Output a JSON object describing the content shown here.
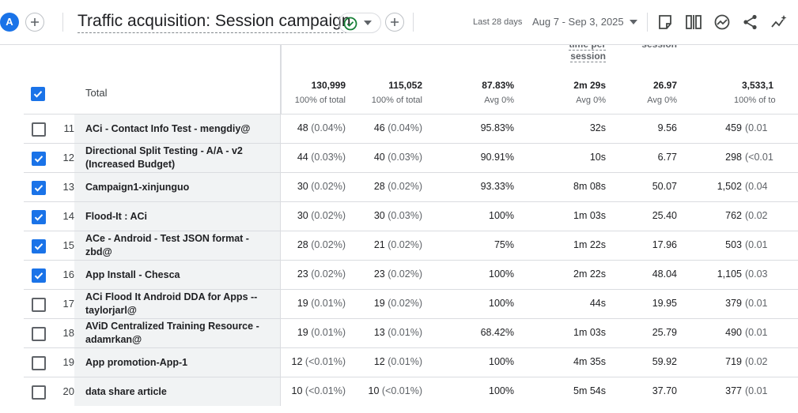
{
  "header": {
    "avatar_letter": "A",
    "report_title": "Traffic acquisition: Session campaign",
    "date_label": "Last 28 days",
    "date_range": "Aug 7 - Sep 3, 2025",
    "icons": [
      "add-icon",
      "check-circle-icon",
      "chevron-down-icon",
      "add-icon",
      "edit-icon",
      "compare-icon",
      "insights-icon",
      "share-icon",
      "sparkle-icon"
    ]
  },
  "table": {
    "partial_headers": [
      "time per session",
      "session"
    ],
    "total": {
      "label": "Total",
      "checked": true,
      "values": [
        {
          "main": "130,999",
          "sub": "100% of total"
        },
        {
          "main": "115,052",
          "sub": "100% of total"
        },
        {
          "main": "87.83%",
          "sub": "Avg 0%"
        },
        {
          "main": "2m 29s",
          "sub": "Avg 0%"
        },
        {
          "main": "26.97",
          "sub": "Avg 0%"
        },
        {
          "main": "3,533,1",
          "sub": "100% of to"
        }
      ]
    },
    "rows": [
      {
        "index": "11",
        "checked": false,
        "name": "ACi - Contact Info Test - mengdiy@",
        "c1": "48",
        "c1p": "(0.04%)",
        "c2": "46",
        "c2p": "(0.04%)",
        "c3": "95.83%",
        "c4": "32s",
        "c5": "9.56",
        "c6": "459",
        "c6p": "(0.01"
      },
      {
        "index": "12",
        "checked": true,
        "name": "Directional Split Testing - A/A - v2 (Increased Budget)",
        "c1": "44",
        "c1p": "(0.03%)",
        "c2": "40",
        "c2p": "(0.03%)",
        "c3": "90.91%",
        "c4": "10s",
        "c5": "6.77",
        "c6": "298",
        "c6p": "(<0.01"
      },
      {
        "index": "13",
        "checked": true,
        "name": "Campaign1-xinjunguo",
        "c1": "30",
        "c1p": "(0.02%)",
        "c2": "28",
        "c2p": "(0.02%)",
        "c3": "93.33%",
        "c4": "8m 08s",
        "c5": "50.07",
        "c6": "1,502",
        "c6p": "(0.04"
      },
      {
        "index": "14",
        "checked": true,
        "name": "Flood-It : ACi",
        "c1": "30",
        "c1p": "(0.02%)",
        "c2": "30",
        "c2p": "(0.03%)",
        "c3": "100%",
        "c4": "1m 03s",
        "c5": "25.40",
        "c6": "762",
        "c6p": "(0.02"
      },
      {
        "index": "15",
        "checked": true,
        "name": "ACe - Android - Test JSON format - zbd@",
        "c1": "28",
        "c1p": "(0.02%)",
        "c2": "21",
        "c2p": "(0.02%)",
        "c3": "75%",
        "c4": "1m 22s",
        "c5": "17.96",
        "c6": "503",
        "c6p": "(0.01"
      },
      {
        "index": "16",
        "checked": true,
        "name": "App Install - Chesca",
        "c1": "23",
        "c1p": "(0.02%)",
        "c2": "23",
        "c2p": "(0.02%)",
        "c3": "100%",
        "c4": "2m 22s",
        "c5": "48.04",
        "c6": "1,105",
        "c6p": "(0.03"
      },
      {
        "index": "17",
        "checked": false,
        "name": "ACi Flood It Android DDA for Apps -- taylorjarl@",
        "c1": "19",
        "c1p": "(0.01%)",
        "c2": "19",
        "c2p": "(0.02%)",
        "c3": "100%",
        "c4": "44s",
        "c5": "19.95",
        "c6": "379",
        "c6p": "(0.01"
      },
      {
        "index": "18",
        "checked": false,
        "name": "AViD Centralized Training Resource - adamrkan@",
        "c1": "19",
        "c1p": "(0.01%)",
        "c2": "13",
        "c2p": "(0.01%)",
        "c3": "68.42%",
        "c4": "1m 03s",
        "c5": "25.79",
        "c6": "490",
        "c6p": "(0.01"
      },
      {
        "index": "19",
        "checked": false,
        "name": "App promotion-App-1",
        "c1": "12",
        "c1p": "(<0.01%)",
        "c2": "12",
        "c2p": "(0.01%)",
        "c3": "100%",
        "c4": "4m 35s",
        "c5": "59.92",
        "c6": "719",
        "c6p": "(0.02"
      },
      {
        "index": "20",
        "checked": false,
        "name": "data share article",
        "c1": "10",
        "c1p": "(<0.01%)",
        "c2": "10",
        "c2p": "(<0.01%)",
        "c3": "100%",
        "c4": "5m 54s",
        "c5": "37.70",
        "c6": "377",
        "c6p": "(0.01"
      }
    ]
  },
  "colors": {
    "accent": "#1a73e8",
    "ok": "#188038",
    "dim_bg": "#f1f3f4"
  }
}
